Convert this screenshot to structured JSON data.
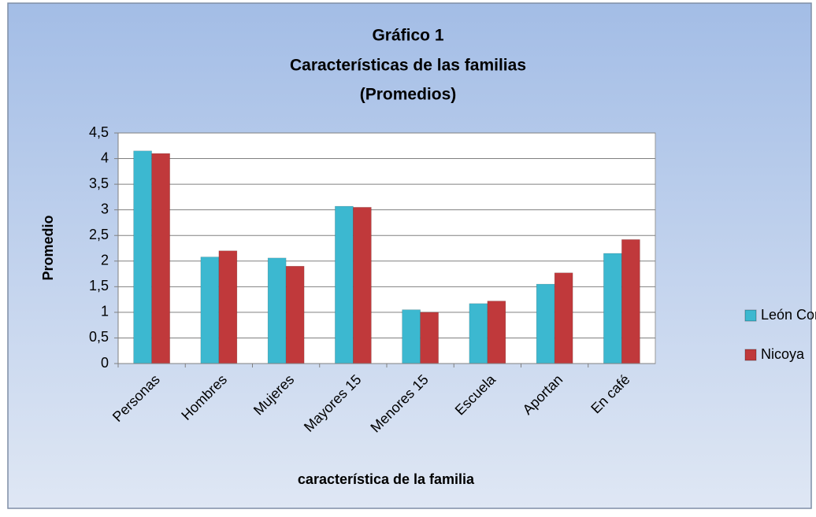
{
  "chart_data": {
    "type": "bar",
    "title": [
      "Gráfico 1",
      "Características de las familias",
      "(Promedios)"
    ],
    "x_label": "característica de la familia",
    "y_label": "Promedio",
    "categories": [
      "Personas",
      "Hombres",
      "Mujeres",
      "Mayores 15",
      "Menores 15",
      "Escuela",
      "Aportan",
      "En café"
    ],
    "series": [
      {
        "name": "León Cortés",
        "color": "#3cb8d0",
        "values": [
          4.15,
          2.08,
          2.06,
          3.07,
          1.05,
          1.17,
          1.55,
          2.15
        ]
      },
      {
        "name": "Nicoya",
        "color": "#c0393b",
        "values": [
          4.1,
          2.2,
          1.9,
          3.05,
          1.0,
          1.22,
          1.77,
          2.42
        ]
      }
    ],
    "ylim": [
      0,
      4.5
    ],
    "yticks": [
      0,
      {
        "value": 0.5,
        "label": "0,5"
      },
      1,
      {
        "value": 1.5,
        "label": "1,5"
      },
      2,
      {
        "value": 2.5,
        "label": "2,5"
      },
      3,
      {
        "value": 3.5,
        "label": "3,5"
      },
      4,
      {
        "value": 4.5,
        "label": "4,5"
      }
    ],
    "grid": true,
    "legend": "right"
  }
}
